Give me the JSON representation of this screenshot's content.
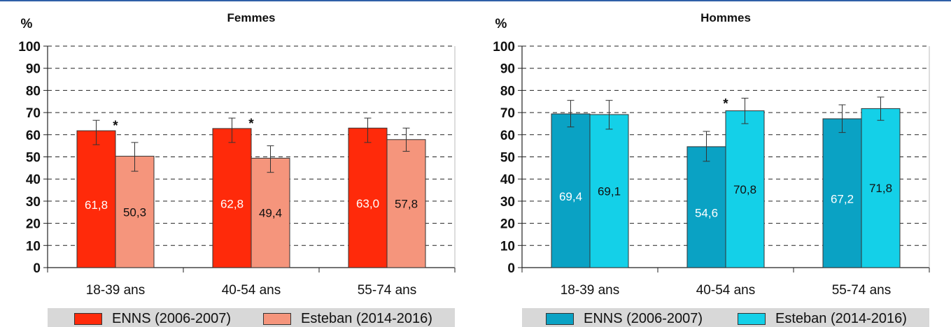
{
  "chart_data": [
    {
      "type": "bar",
      "title": "Femmes",
      "ylabel": "%",
      "ylim": [
        0,
        100
      ],
      "yticks": [
        0,
        10,
        20,
        30,
        40,
        50,
        60,
        70,
        80,
        90,
        100
      ],
      "grid": "dashed-horizontal",
      "categories": [
        "18-39 ans",
        "40-54 ans",
        "55-74 ans"
      ],
      "series": [
        {
          "name": "ENNS (2006-2007)",
          "color": "#ff2a0a",
          "label_color": "#ffffff",
          "values": [
            61.8,
            62.8,
            63.0
          ],
          "labels": [
            "61,8",
            "62,8",
            "63,0"
          ],
          "err_low": [
            55.5,
            56.5,
            56.5
          ],
          "err_high": [
            66.5,
            67.5,
            67.5
          ]
        },
        {
          "name": "Esteban (2014-2016)",
          "color": "#f5957c",
          "label_color": "#111111",
          "values": [
            50.3,
            49.4,
            57.8
          ],
          "labels": [
            "50,3",
            "49,4",
            "57,8"
          ],
          "err_low": [
            43.5,
            43.0,
            52.5
          ],
          "err_high": [
            56.5,
            55.0,
            63.0
          ]
        }
      ],
      "significance": [
        {
          "category_index": 0,
          "text": "*"
        },
        {
          "category_index": 1,
          "text": "*"
        }
      ]
    },
    {
      "type": "bar",
      "title": "Hommes",
      "ylabel": "%",
      "ylim": [
        0,
        100
      ],
      "yticks": [
        0,
        10,
        20,
        30,
        40,
        50,
        60,
        70,
        80,
        90,
        100
      ],
      "grid": "dashed-horizontal",
      "categories": [
        "18-39 ans",
        "40-54 ans",
        "55-74 ans"
      ],
      "series": [
        {
          "name": "ENNS (2006-2007)",
          "color": "#0aa2c4",
          "label_color": "#ffffff",
          "values": [
            69.4,
            54.6,
            67.2
          ],
          "labels": [
            "69,4",
            "54,6",
            "67,2"
          ],
          "err_low": [
            63.5,
            48.0,
            61.0
          ],
          "err_high": [
            75.5,
            61.5,
            73.5
          ]
        },
        {
          "name": "Esteban (2014-2016)",
          "color": "#14d0e8",
          "label_color": "#111111",
          "values": [
            69.1,
            70.8,
            71.8
          ],
          "labels": [
            "69,1",
            "70,8",
            "71,8"
          ],
          "err_low": [
            62.5,
            65.0,
            66.5
          ],
          "err_high": [
            75.5,
            76.5,
            77.0
          ]
        }
      ],
      "significance": [
        {
          "category_index": 1,
          "text": "*"
        }
      ]
    }
  ]
}
